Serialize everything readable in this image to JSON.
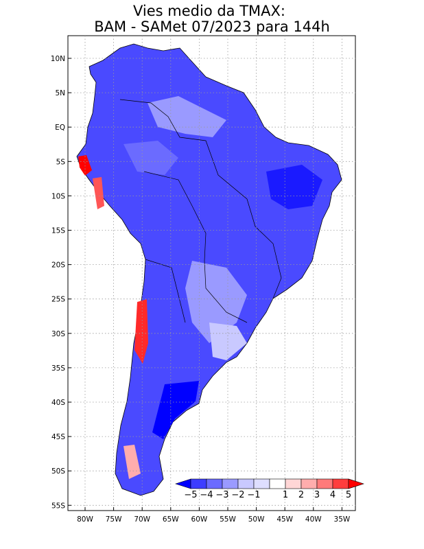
{
  "figure": {
    "title_line1": "Vies medio da TMAX:",
    "title_line2": "BAM - SAMet 07/2023  para 144h"
  },
  "map": {
    "region": "South America",
    "variable": "TMAX bias",
    "lat_labels": [
      "10N",
      "5N",
      "EQ",
      "5S",
      "10S",
      "15S",
      "20S",
      "25S",
      "30S",
      "35S",
      "40S",
      "45S",
      "50S",
      "55S"
    ],
    "lon_labels": [
      "80W",
      "75W",
      "70W",
      "65W",
      "60W",
      "55W",
      "50W",
      "45W",
      "40W",
      "35W"
    ]
  },
  "colorbar": {
    "labels": [
      "-5",
      "-4",
      "-3",
      "-2",
      "-1",
      "1",
      "2",
      "3",
      "4",
      "5"
    ],
    "colors": [
      "#0000ff",
      "#3d3dff",
      "#6b6bff",
      "#9a9aff",
      "#c9c9ff",
      "#dedeff",
      "#ffffff",
      "#ffd6d6",
      "#ffadad",
      "#ff7a7a",
      "#ff3d3d",
      "#ff0000"
    ]
  },
  "colors": {
    "ocean": "#ffffff",
    "land_bias_dominant": "#4a4aff",
    "positive_bias": "#ff2a2a",
    "grid": "#9a9a9a"
  }
}
